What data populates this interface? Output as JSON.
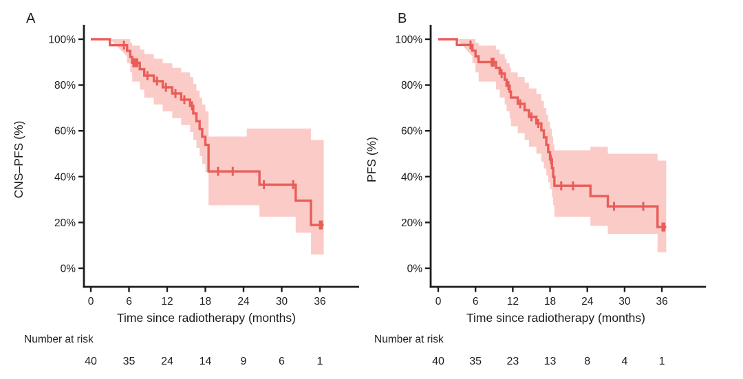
{
  "figure": {
    "background": "#ffffff",
    "text_color": "#1c1c1c"
  },
  "chart_data": [
    {
      "type": "line",
      "subtype": "kaplan-meier",
      "panel_label": "A",
      "xlabel": "Time since radiotherapy (months)",
      "ylabel": "CNS–PFS (%)",
      "xlim": [
        0,
        42
      ],
      "ylim": [
        0,
        100
      ],
      "grid": false,
      "legend": "none",
      "x_ticks": [
        0,
        6,
        12,
        18,
        24,
        30,
        36
      ],
      "y_tick_values": [
        0,
        20,
        40,
        60,
        80,
        100
      ],
      "y_tick_labels": [
        "0%",
        "20%",
        "40%",
        "60%",
        "80%",
        "100%"
      ],
      "line_color": "#e95d58",
      "band_color": "#fbcbc8",
      "axis_color": "#1c1c1c",
      "curve_end_time": 36.6,
      "survival_steps": [
        [
          0,
          100
        ],
        [
          3,
          97.4
        ],
        [
          5.7,
          94.9
        ],
        [
          6.2,
          92.3
        ],
        [
          6.5,
          89.7
        ],
        [
          7.7,
          86.9
        ],
        [
          8.4,
          84.1
        ],
        [
          9.9,
          81.7
        ],
        [
          11.3,
          79
        ],
        [
          12.8,
          76.3
        ],
        [
          14.2,
          73.6
        ],
        [
          15.6,
          70.9
        ],
        [
          16.1,
          67.6
        ],
        [
          16.6,
          64.2
        ],
        [
          17.1,
          60.8
        ],
        [
          17.5,
          57.4
        ],
        [
          18,
          53.9
        ],
        [
          18.5,
          42.3
        ],
        [
          26.5,
          36.5
        ],
        [
          32.2,
          29.5
        ],
        [
          34.6,
          18.9
        ]
      ],
      "censor_marks": [
        [
          5.2,
          97.4
        ],
        [
          6.7,
          89.7
        ],
        [
          7,
          89.7
        ],
        [
          7.3,
          89.7
        ],
        [
          8.9,
          84.1
        ],
        [
          10.4,
          81.7
        ],
        [
          11.8,
          79
        ],
        [
          13.3,
          76.3
        ],
        [
          14.7,
          73.6
        ],
        [
          15.9,
          70.9
        ],
        [
          20,
          42.3
        ],
        [
          22.3,
          42.3
        ],
        [
          27.2,
          36.5
        ],
        [
          31.8,
          36.5
        ],
        [
          36,
          18.9
        ],
        [
          36.3,
          18.9
        ]
      ],
      "band_steps": [
        [
          3,
          92.5,
          100
        ],
        [
          5.7,
          89.5,
          100
        ],
        [
          6.2,
          85.5,
          98.5
        ],
        [
          6.5,
          81.5,
          97.2
        ],
        [
          7.7,
          78,
          95.5
        ],
        [
          8.4,
          74.5,
          93.5
        ],
        [
          9.9,
          71.5,
          91.5
        ],
        [
          11.3,
          68.5,
          89.5
        ],
        [
          12.8,
          65.5,
          87.5
        ],
        [
          14.2,
          62.5,
          85.5
        ],
        [
          15.6,
          59.5,
          83.5
        ],
        [
          16.1,
          56,
          80.5
        ],
        [
          16.6,
          52.5,
          77.5
        ],
        [
          17.1,
          49,
          74.5
        ],
        [
          17.5,
          45.5,
          71.5
        ],
        [
          18,
          42,
          68.5
        ],
        [
          18.5,
          27.5,
          57.5
        ],
        [
          24.5,
          27.5,
          61
        ],
        [
          26.5,
          22.5,
          61
        ],
        [
          32.2,
          15.5,
          61
        ],
        [
          34.6,
          6,
          56
        ]
      ],
      "risk_label": "Number at risk",
      "number_at_risk": [
        40,
        35,
        24,
        14,
        9,
        6,
        1
      ]
    },
    {
      "type": "line",
      "subtype": "kaplan-meier",
      "panel_label": "B",
      "xlabel": "Time since radiotherapy (months)",
      "ylabel": "PFS (%)",
      "xlim": [
        0,
        42
      ],
      "ylim": [
        0,
        100
      ],
      "grid": false,
      "legend": "none",
      "x_ticks": [
        0,
        6,
        12,
        18,
        24,
        30,
        36
      ],
      "y_tick_values": [
        0,
        20,
        40,
        60,
        80,
        100
      ],
      "y_tick_labels": [
        "0%",
        "20%",
        "40%",
        "60%",
        "80%",
        "100%"
      ],
      "line_color": "#e95d58",
      "band_color": "#fbcbc8",
      "axis_color": "#1c1c1c",
      "curve_end_time": 36.7,
      "survival_steps": [
        [
          0,
          100
        ],
        [
          3,
          97.5
        ],
        [
          5.5,
          95
        ],
        [
          6,
          92.5
        ],
        [
          6.5,
          90
        ],
        [
          9.3,
          87.5
        ],
        [
          9.9,
          85
        ],
        [
          10.7,
          82.3
        ],
        [
          11,
          79.7
        ],
        [
          11.5,
          77.1
        ],
        [
          11.7,
          74.5
        ],
        [
          12.8,
          71.8
        ],
        [
          13.9,
          69
        ],
        [
          14.6,
          66.1
        ],
        [
          15.8,
          63.2
        ],
        [
          16.6,
          60.2
        ],
        [
          17,
          57.1
        ],
        [
          17.4,
          53.9
        ],
        [
          17.7,
          50.7
        ],
        [
          18,
          47.5
        ],
        [
          18.3,
          43.7
        ],
        [
          18.5,
          39.9
        ],
        [
          18.7,
          36
        ],
        [
          24.5,
          31.5
        ],
        [
          27.3,
          27
        ],
        [
          35.3,
          18
        ]
      ],
      "censor_marks": [
        [
          5.2,
          97.5
        ],
        [
          8.6,
          90
        ],
        [
          8.9,
          90
        ],
        [
          10.2,
          85
        ],
        [
          11.3,
          79.7
        ],
        [
          13.2,
          71.8
        ],
        [
          15,
          66.1
        ],
        [
          16.1,
          63.2
        ],
        [
          18.15,
          47.5
        ],
        [
          19.8,
          36
        ],
        [
          21.7,
          36
        ],
        [
          28.3,
          27
        ],
        [
          33,
          27
        ],
        [
          36.1,
          18
        ],
        [
          36.4,
          18
        ]
      ],
      "band_steps": [
        [
          3,
          92.5,
          100
        ],
        [
          5.5,
          89.5,
          100
        ],
        [
          6,
          85.5,
          98.5
        ],
        [
          6.5,
          81.5,
          97.2
        ],
        [
          9.3,
          78,
          95.5
        ],
        [
          9.9,
          74.5,
          93.5
        ],
        [
          10.7,
          71.5,
          91.5
        ],
        [
          11,
          68.5,
          89.5
        ],
        [
          11.5,
          65.5,
          87.5
        ],
        [
          11.7,
          62,
          85.5
        ],
        [
          12.8,
          59,
          83.5
        ],
        [
          13.9,
          56,
          81
        ],
        [
          14.6,
          53,
          78.5
        ],
        [
          15.8,
          50,
          76
        ],
        [
          16.6,
          46.5,
          73
        ],
        [
          17,
          43.5,
          70
        ],
        [
          17.4,
          40.5,
          67
        ],
        [
          17.7,
          37.5,
          64
        ],
        [
          18,
          34.5,
          61
        ],
        [
          18.3,
          31,
          57.5
        ],
        [
          18.5,
          27.5,
          54
        ],
        [
          18.7,
          22.5,
          51.5
        ],
        [
          24.5,
          18.5,
          53
        ],
        [
          27.3,
          15,
          50
        ],
        [
          35.3,
          7,
          47
        ]
      ],
      "risk_label": "Number at risk",
      "number_at_risk": [
        40,
        35,
        23,
        13,
        8,
        4,
        1
      ]
    }
  ]
}
